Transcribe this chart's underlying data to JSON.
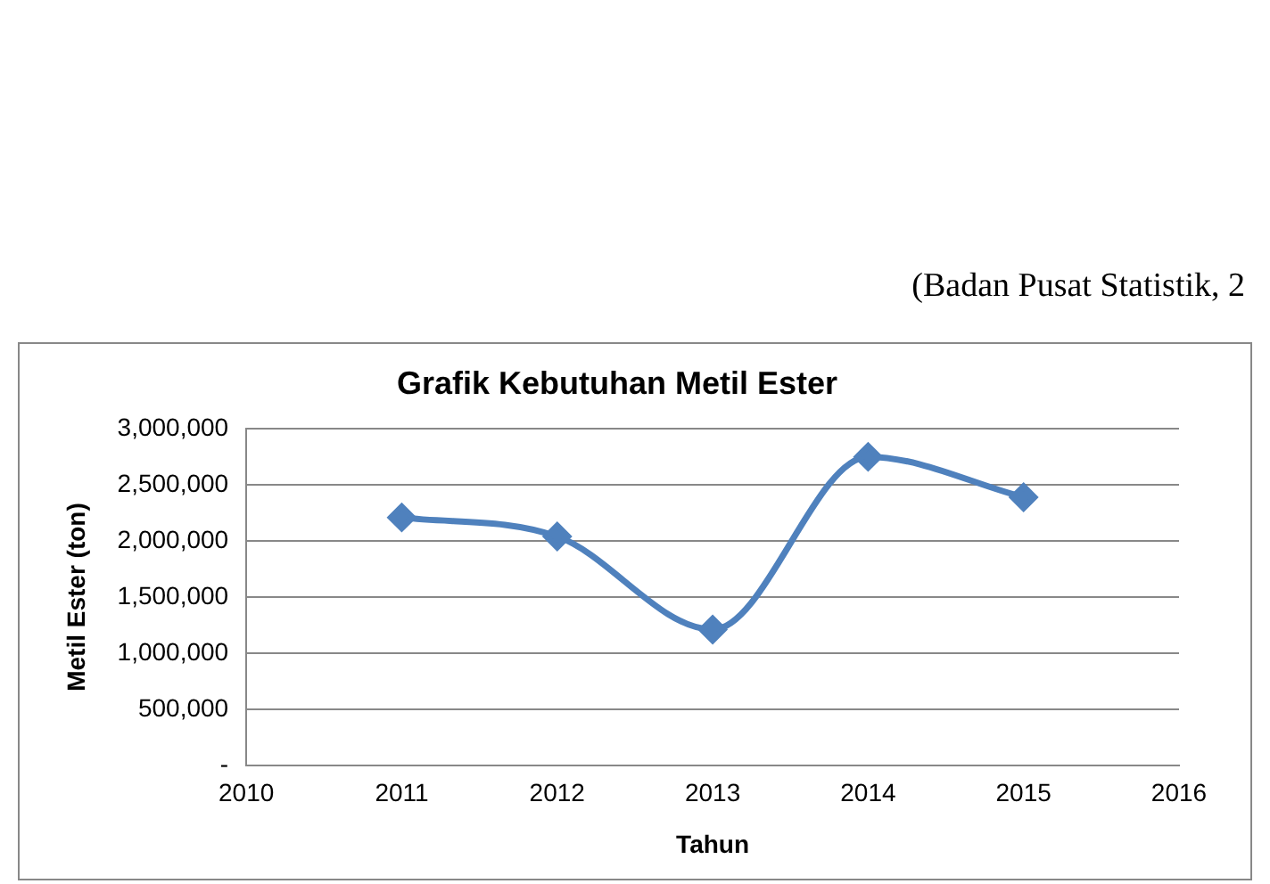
{
  "chart_data": {
    "type": "line",
    "title": "Grafik Kebutuhan Metil Ester",
    "xlabel": "Tahun",
    "ylabel": "Metil Ester (ton)",
    "x": [
      2011,
      2012,
      2013,
      2014,
      2015
    ],
    "series": [
      {
        "color": "#4f81bd",
        "values": [
          2210000,
          2040000,
          1210000,
          2750000,
          2390000
        ]
      }
    ],
    "xlim": [
      2010,
      2016
    ],
    "xticks": [
      2010,
      2011,
      2012,
      2013,
      2014,
      2015,
      2016
    ],
    "ylim": [
      0,
      3000000
    ],
    "yticks": [
      {
        "value": 0,
        "label": "-"
      },
      {
        "value": 500000,
        "label": "500,000"
      },
      {
        "value": 1000000,
        "label": "1,000,000"
      },
      {
        "value": 1500000,
        "label": "1,500,000"
      },
      {
        "value": 2000000,
        "label": "2,000,000"
      },
      {
        "value": 2500000,
        "label": "2,500,000"
      },
      {
        "value": 3000000,
        "label": "3,000,000"
      }
    ],
    "grid": "y",
    "legend": false,
    "marker": "diamond",
    "line_style": "solid",
    "annotations": [
      "(Badan Pusat Statistik, 2"
    ]
  }
}
